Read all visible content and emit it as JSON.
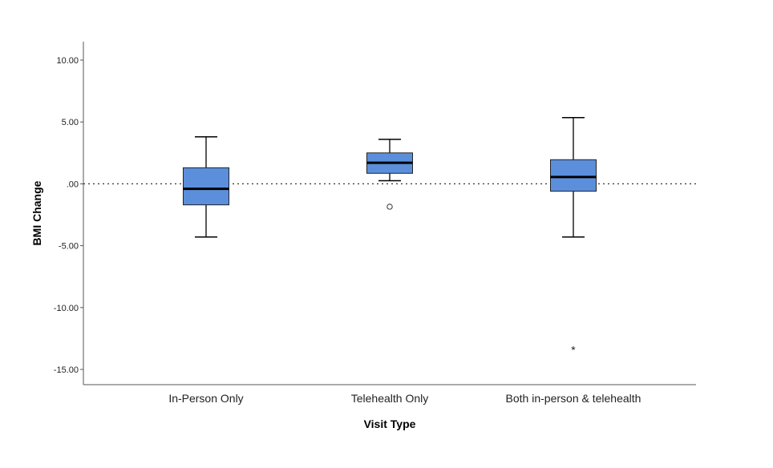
{
  "chart_data": {
    "type": "boxplot",
    "xlabel": "Visit Type",
    "ylabel": "BMI Change",
    "ylim": [
      -16.2,
      11.6
    ],
    "yticks": [
      10,
      5,
      0,
      -5,
      -10,
      -15
    ],
    "ytick_labels": [
      "10.00",
      "5.00",
      ".00",
      "-5.00",
      "-10.00",
      "-15.00"
    ],
    "reference_line": {
      "y": 0,
      "style": "dotted"
    },
    "box_color": "#5b8fdc",
    "categories": [
      "In-Person Only",
      "Telehealth Only",
      "Both in-person & telehealth"
    ],
    "boxes": [
      {
        "category": "In-Person Only",
        "whisker_low": -4.3,
        "q1": -1.7,
        "median": -0.4,
        "q3": 1.3,
        "whisker_high": 3.8,
        "outliers": [],
        "extremes": []
      },
      {
        "category": "Telehealth Only",
        "whisker_low": 0.25,
        "q1": 0.85,
        "median": 1.7,
        "q3": 2.5,
        "whisker_high": 3.6,
        "outliers": [
          -1.85
        ],
        "extremes": []
      },
      {
        "category": "Both in-person & telehealth",
        "whisker_low": -4.3,
        "q1": -0.6,
        "median": 0.55,
        "q3": 1.95,
        "whisker_high": 5.35,
        "outliers": [],
        "extremes": [
          -13.4
        ]
      }
    ],
    "grid": false,
    "legend": "none"
  }
}
